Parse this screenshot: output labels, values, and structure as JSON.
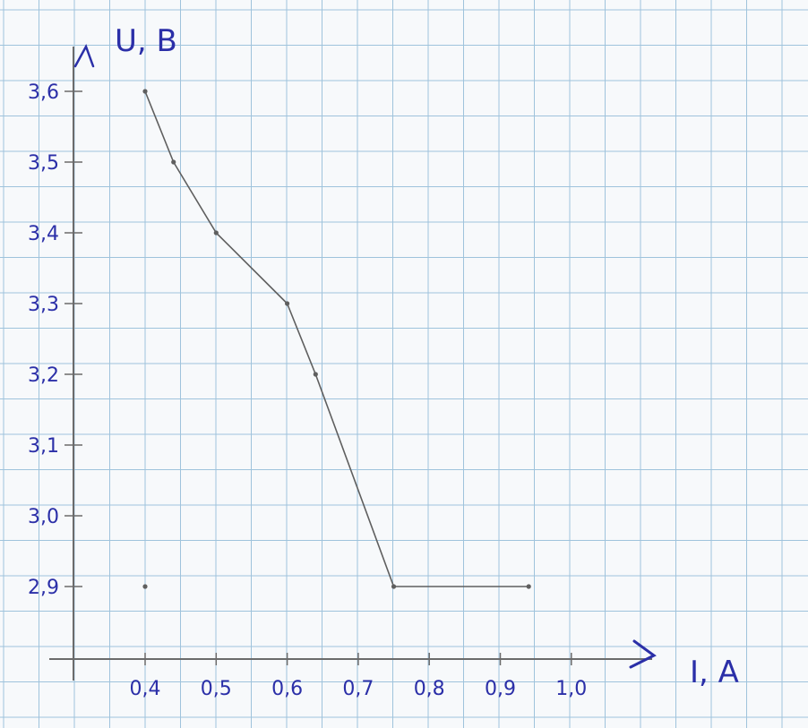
{
  "chart_data": {
    "type": "line",
    "xlabel": "I, A",
    "ylabel": "U, B",
    "x_ticks": [
      "0,4",
      "0,5",
      "0,6",
      "0,7",
      "0,8",
      "0,9",
      "1,0"
    ],
    "x_tick_values": [
      0.4,
      0.5,
      0.6,
      0.7,
      0.8,
      0.9,
      1.0
    ],
    "y_ticks": [
      "3,6",
      "3,5",
      "3,4",
      "3,3",
      "3,2",
      "3,1",
      "3,0",
      "2,9"
    ],
    "y_tick_values": [
      3.6,
      3.5,
      3.4,
      3.3,
      3.2,
      3.1,
      3.0,
      2.9
    ],
    "series": [
      {
        "points": [
          {
            "x": 0.4,
            "y": 3.6
          },
          {
            "x": 0.44,
            "y": 3.5
          },
          {
            "x": 0.5,
            "y": 3.4
          },
          {
            "x": 0.6,
            "y": 3.3
          },
          {
            "x": 0.64,
            "y": 3.2
          },
          {
            "x": 0.75,
            "y": 2.9
          },
          {
            "x": 0.94,
            "y": 2.9
          }
        ]
      }
    ],
    "extra_points": [
      {
        "x": 0.4,
        "y": 2.9
      }
    ],
    "grid": true,
    "colors": {
      "grid": "#9fc3dc",
      "axis": "#6b6b6b",
      "line": "#5f5f5f",
      "ink": "#2b2fa8",
      "paper": "#f7f9fb"
    }
  }
}
